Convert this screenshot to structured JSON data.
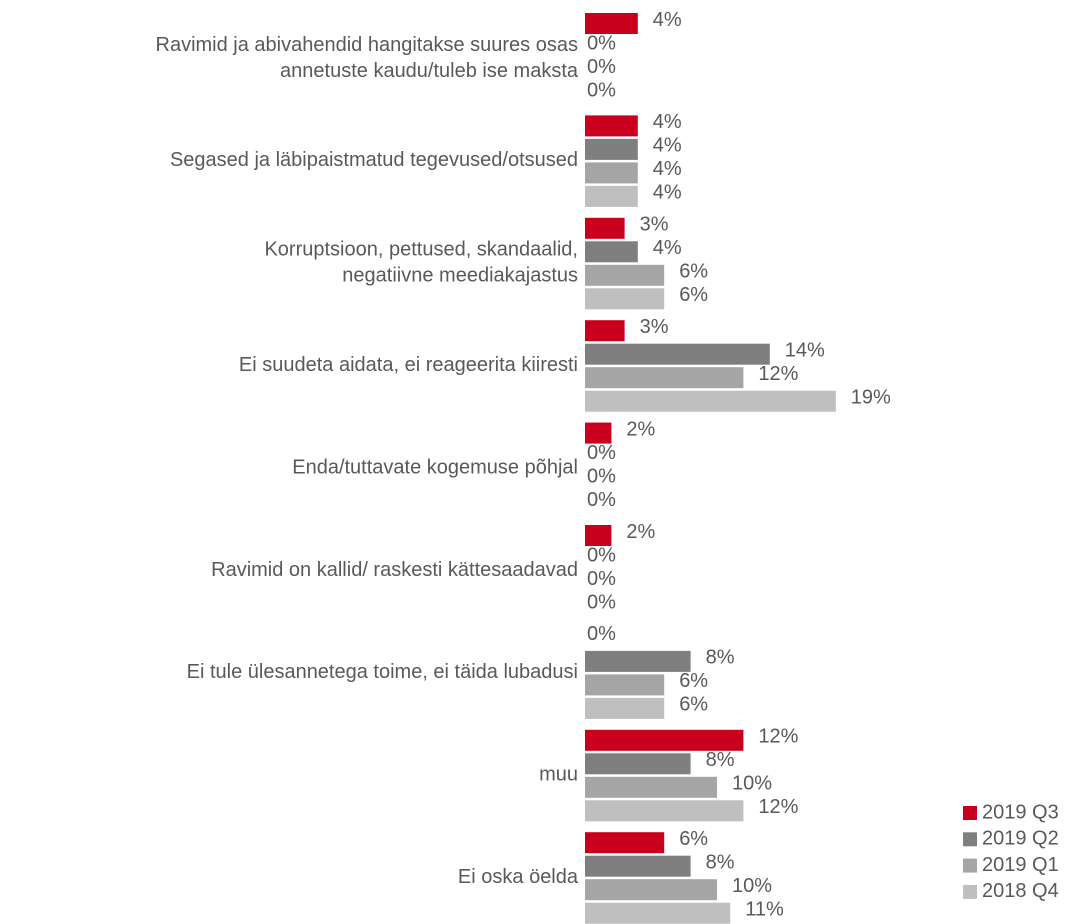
{
  "chart_data": {
    "type": "bar",
    "orientation": "horizontal",
    "categories": [
      [
        "Ravimid ja abivahendid hangitakse suures osas",
        "annetuste kaudu/tuleb ise maksta"
      ],
      [
        "Segased ja läbipaistmatud tegevused/otsused"
      ],
      [
        "Korruptsioon, pettused, skandaalid,",
        "negatiivne meediakajastus"
      ],
      [
        "Ei suudeta aidata, ei reageerita kiiresti"
      ],
      [
        "Enda/tuttavate kogemuse põhjal"
      ],
      [
        "Ravimid on kallid/ raskesti kättesaadavad"
      ],
      [
        "Ei tule ülesannetega toime, ei täida lubadusi"
      ],
      [
        "muu"
      ],
      [
        "Ei oska öelda"
      ]
    ],
    "series": [
      {
        "name": "2019 Q3",
        "color": "#c8001e",
        "values": [
          4,
          4,
          3,
          3,
          2,
          2,
          0,
          12,
          6
        ],
        "value_labels": [
          "4%",
          "4%",
          "3%",
          "3%",
          "2%",
          "2%",
          "0%",
          "12%",
          "6%"
        ]
      },
      {
        "name": "2019 Q2",
        "color": "#7f7f7f",
        "values": [
          0,
          4,
          4,
          14,
          0,
          0,
          8,
          8,
          8
        ],
        "value_labels": [
          "0%",
          "4%",
          "4%",
          "14%",
          "0%",
          "0%",
          "8%",
          "8%",
          "8%"
        ]
      },
      {
        "name": "2019 Q1",
        "color": "#a5a5a5",
        "values": [
          0,
          4,
          6,
          12,
          0,
          0,
          6,
          10,
          10
        ],
        "value_labels": [
          "0%",
          "4%",
          "6%",
          "12%",
          "0%",
          "0%",
          "6%",
          "10%",
          "10%"
        ]
      },
      {
        "name": "2018 Q4",
        "color": "#bfbfbf",
        "values": [
          0,
          4,
          6,
          19,
          0,
          0,
          6,
          12,
          11
        ],
        "value_labels": [
          "0%",
          "4%",
          "6%",
          "19%",
          "0%",
          "0%",
          "6%",
          "12%",
          "11%"
        ]
      }
    ],
    "legend": "bottom-right"
  }
}
